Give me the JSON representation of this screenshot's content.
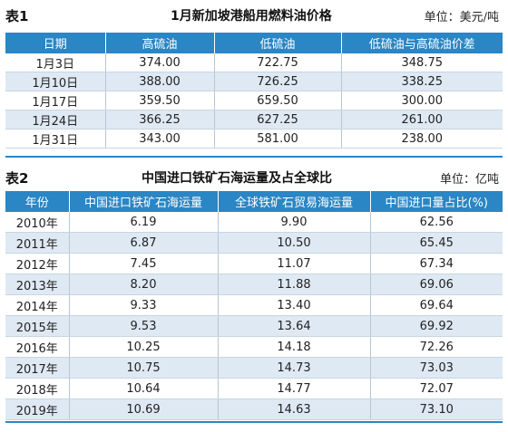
{
  "table1": {
    "label": "表1",
    "title": "1月新加坡港船用燃料油价格",
    "unit": "单位：美元/吨",
    "headers": [
      "日期",
      "高硫油",
      "低硫油",
      "低硫油与高硫油价差"
    ],
    "rows": [
      [
        "1月3日",
        "374.00",
        "722.75",
        "348.75"
      ],
      [
        "1月10日",
        "388.00",
        "726.25",
        "338.25"
      ],
      [
        "1月17日",
        "359.50",
        "659.50",
        "300.00"
      ],
      [
        "1月24日",
        "366.25",
        "627.25",
        "261.00"
      ],
      [
        "1月31日",
        "343.00",
        "581.00",
        "238.00"
      ]
    ]
  },
  "table2": {
    "label": "表2",
    "title": "中国进口铁矿石海运量及占全球比",
    "unit": "单位：亿吨",
    "headers": [
      "年份",
      "中国进口铁矿石海运量",
      "全球铁矿石贸易海运量",
      "中国进口量占比(%)"
    ],
    "rows": [
      [
        "2010年",
        "6.19",
        "9.90",
        "62.56"
      ],
      [
        "2011年",
        "6.87",
        "10.50",
        "65.45"
      ],
      [
        "2012年",
        "7.45",
        "11.07",
        "67.34"
      ],
      [
        "2013年",
        "8.20",
        "11.88",
        "69.06"
      ],
      [
        "2014年",
        "9.33",
        "13.40",
        "69.64"
      ],
      [
        "2015年",
        "9.53",
        "13.64",
        "69.92"
      ],
      [
        "2016年",
        "10.25",
        "14.18",
        "72.26"
      ],
      [
        "2017年",
        "10.75",
        "14.73",
        "73.03"
      ],
      [
        "2018年",
        "10.64",
        "14.77",
        "72.07"
      ],
      [
        "2019年",
        "10.69",
        "14.63",
        "73.10"
      ]
    ]
  }
}
